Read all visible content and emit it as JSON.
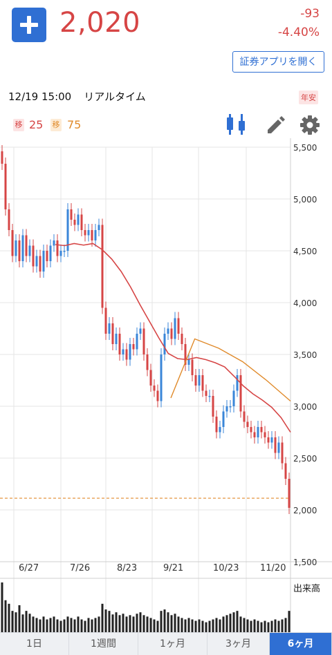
{
  "header": {
    "price": "2,020",
    "change": "-93",
    "change_pct": "-4.40%",
    "app_button": "証券アプリを開く",
    "timestamp": "12/19 15:00",
    "mode": "リアルタイム",
    "badge": "年安"
  },
  "indicators": {
    "ma1": {
      "label": "移",
      "value": "25",
      "color": "#d64545"
    },
    "ma2": {
      "label": "移",
      "value": "75",
      "color": "#e08a2a"
    }
  },
  "toolbar": {
    "icons": [
      "candlestick-icon",
      "pencil-icon",
      "gear-icon"
    ],
    "active_color": "#2f6fd3"
  },
  "colors": {
    "up": "#d64545",
    "down": "#3a86d8",
    "ma1": "#d64545",
    "ma2": "#e08a2a",
    "reference_line": "#e08a2a"
  },
  "chart_data": {
    "type": "line",
    "ylim": [
      1500,
      5500
    ],
    "y_ticks": [
      "5,500",
      "5,000",
      "4,500",
      "4,000",
      "3,500",
      "3,000",
      "2,500",
      "2,000",
      "1,500"
    ],
    "x_ticks": [
      "6/27",
      "7/26",
      "8/23",
      "9/21",
      "10/23",
      "11/20"
    ],
    "reference_price": 2113,
    "volume_label": "出来高",
    "series": [
      {
        "values": [
          5340,
          4900,
          4700,
          4450,
          4600,
          4400,
          4650,
          4450,
          4550,
          4350,
          4450,
          4300,
          4500,
          4400,
          4550,
          4600,
          4450,
          4500,
          4500,
          4900,
          4800,
          4750,
          4850,
          4700,
          4650,
          4700,
          4600,
          4700,
          4750,
          3950,
          3700,
          3800,
          3600,
          3700,
          3500,
          3550,
          3450,
          3600,
          3550,
          3700,
          3750,
          3500,
          3350,
          3200,
          3150,
          3050,
          3500,
          3700,
          3750,
          3650,
          3850,
          3700,
          3600,
          3400,
          3450,
          3300,
          3200,
          3300,
          3150,
          3100,
          3100,
          2900,
          2750,
          2800,
          2950,
          3000,
          3000,
          3150,
          3300,
          2950,
          2850,
          2800,
          2750,
          2700,
          2800,
          2750,
          2700,
          2650,
          2700,
          2550,
          2650,
          2450,
          2300,
          2020
        ]
      },
      {
        "values": [
          4560,
          4550,
          4570,
          4555,
          4570,
          4510,
          4420,
          4300,
          4150,
          3980,
          3820,
          3660,
          3510,
          3460,
          3450,
          3470,
          3450,
          3420,
          3380,
          3290,
          3195,
          3120,
          3060,
          2990,
          2890,
          2750
        ]
      },
      {
        "values": [
          3080,
          3650,
          3560,
          3430,
          3250,
          3050
        ]
      }
    ],
    "volume": [
      70,
      45,
      40,
      30,
      28,
      38,
      25,
      30,
      26,
      22,
      20,
      18,
      22,
      18,
      20,
      22,
      18,
      16,
      18,
      22,
      20,
      18,
      22,
      18,
      16,
      20,
      18,
      20,
      22,
      40,
      32,
      30,
      25,
      28,
      24,
      26,
      22,
      24,
      22,
      26,
      28,
      24,
      22,
      20,
      18,
      16,
      30,
      32,
      28,
      24,
      26,
      22,
      20,
      18,
      20,
      18,
      16,
      18,
      16,
      14,
      16,
      18,
      20,
      18,
      22,
      24,
      26,
      28,
      30,
      22,
      20,
      18,
      16,
      18,
      16,
      14,
      16,
      14,
      16,
      18,
      16,
      18,
      20,
      30
    ]
  },
  "range_tabs": {
    "items": [
      "1日",
      "1週間",
      "1ヶ月",
      "3ヶ月",
      "6ヶ月"
    ],
    "active": 4
  }
}
